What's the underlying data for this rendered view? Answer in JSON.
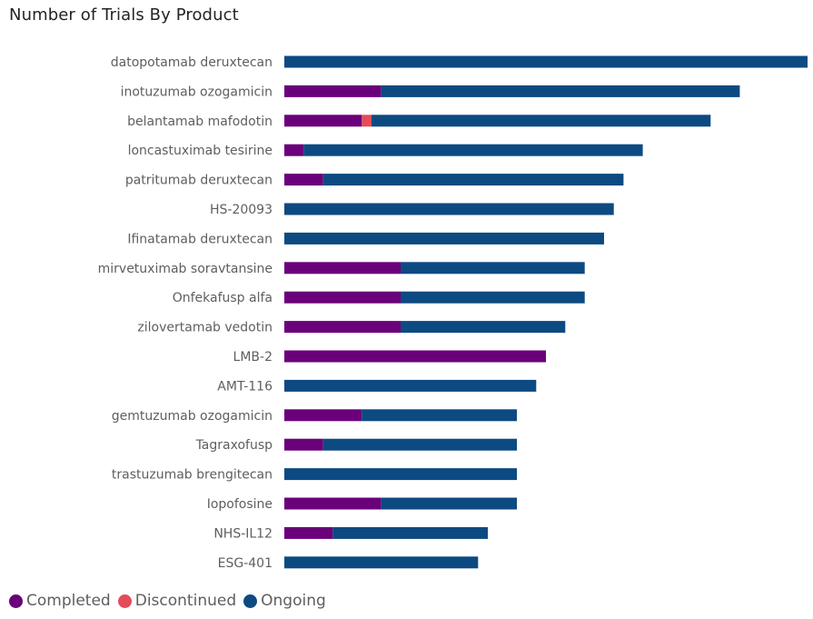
{
  "page_title": "Number of Trials By Product",
  "chart_data": {
    "type": "bar",
    "orientation": "horizontal",
    "stacked": true,
    "title": "Number of Trials By Product",
    "xlabel": "",
    "ylabel": "",
    "xlim": [
      0,
      27
    ],
    "grid": false,
    "legend_position": "bottom-left",
    "categories": [
      "datopotamab deruxtecan",
      "inotuzumab ozogamicin",
      "belantamab mafodotin",
      "loncastuximab tesirine",
      "patritumab deruxtecan",
      "HS-20093",
      "Ifinatamab deruxtecan",
      "mirvetuximab soravtansine",
      "Onfekafusp alfa",
      "zilovertamab vedotin",
      "LMB-2",
      "AMT-116",
      "gemtuzumab ozogamicin",
      "Tagraxofusp",
      "trastuzumab brengitecan",
      "Iopofosine",
      "NHS-IL12",
      "ESG-401"
    ],
    "series": [
      {
        "name": "Completed",
        "color": "#6b007b",
        "values": [
          0,
          5,
          4,
          1,
          2,
          0,
          0,
          6,
          6,
          6,
          13.5,
          0,
          4,
          2,
          0,
          5,
          2.5,
          0
        ]
      },
      {
        "name": "Discontinued",
        "color": "#e44c5a",
        "values": [
          0,
          0,
          0.5,
          0,
          0,
          0,
          0,
          0,
          0,
          0,
          0,
          0,
          0,
          0,
          0,
          0,
          0,
          0
        ]
      },
      {
        "name": "Ongoing",
        "color": "#0d4a82",
        "values": [
          27,
          18.5,
          17.5,
          17.5,
          15.5,
          17,
          16.5,
          9.5,
          9.5,
          8.5,
          0,
          13,
          8,
          10,
          12,
          7,
          8,
          10
        ]
      }
    ]
  },
  "legend": {
    "items": [
      {
        "label": "Completed",
        "color": "#6b007b"
      },
      {
        "label": "Discontinued",
        "color": "#e44c5a"
      },
      {
        "label": "Ongoing",
        "color": "#0d4a82"
      }
    ]
  }
}
